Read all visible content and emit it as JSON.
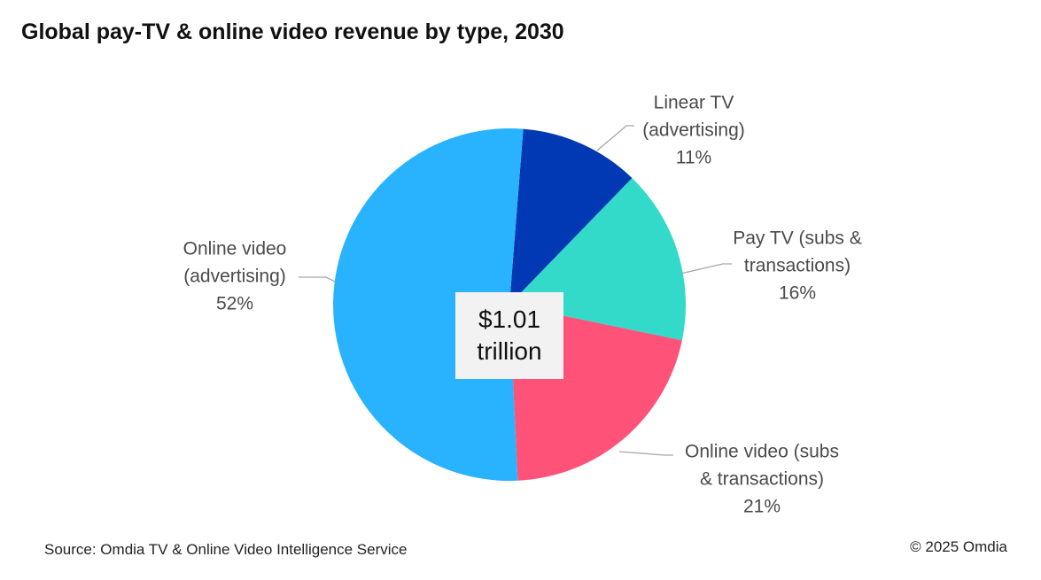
{
  "title": "Global pay-TV & online video revenue by type, 2030",
  "center_label": {
    "line1": "$1.01",
    "line2": "trillion"
  },
  "source": "Source: Omdia TV & Online Video Intelligence Service",
  "copyright": "© 2025 Omdia",
  "chart_data": {
    "type": "pie",
    "title": "Global pay-TV & online video revenue by type, 2030",
    "total_label": "$1.01 trillion",
    "slices": [
      {
        "label_lines": [
          "Linear TV",
          "(advertising)"
        ],
        "value": 11,
        "value_label": "11%",
        "color": "#0039b3"
      },
      {
        "label_lines": [
          "Pay TV (subs &",
          "transactions)"
        ],
        "value": 16,
        "value_label": "16%",
        "color": "#33d9c9"
      },
      {
        "label_lines": [
          "Online video (subs",
          "& transactions)"
        ],
        "value": 21,
        "value_label": "21%",
        "color": "#ff5279"
      },
      {
        "label_lines": [
          "Online video",
          "(advertising)"
        ],
        "value": 52,
        "value_label": "52%",
        "color": "#29b3ff"
      }
    ]
  }
}
